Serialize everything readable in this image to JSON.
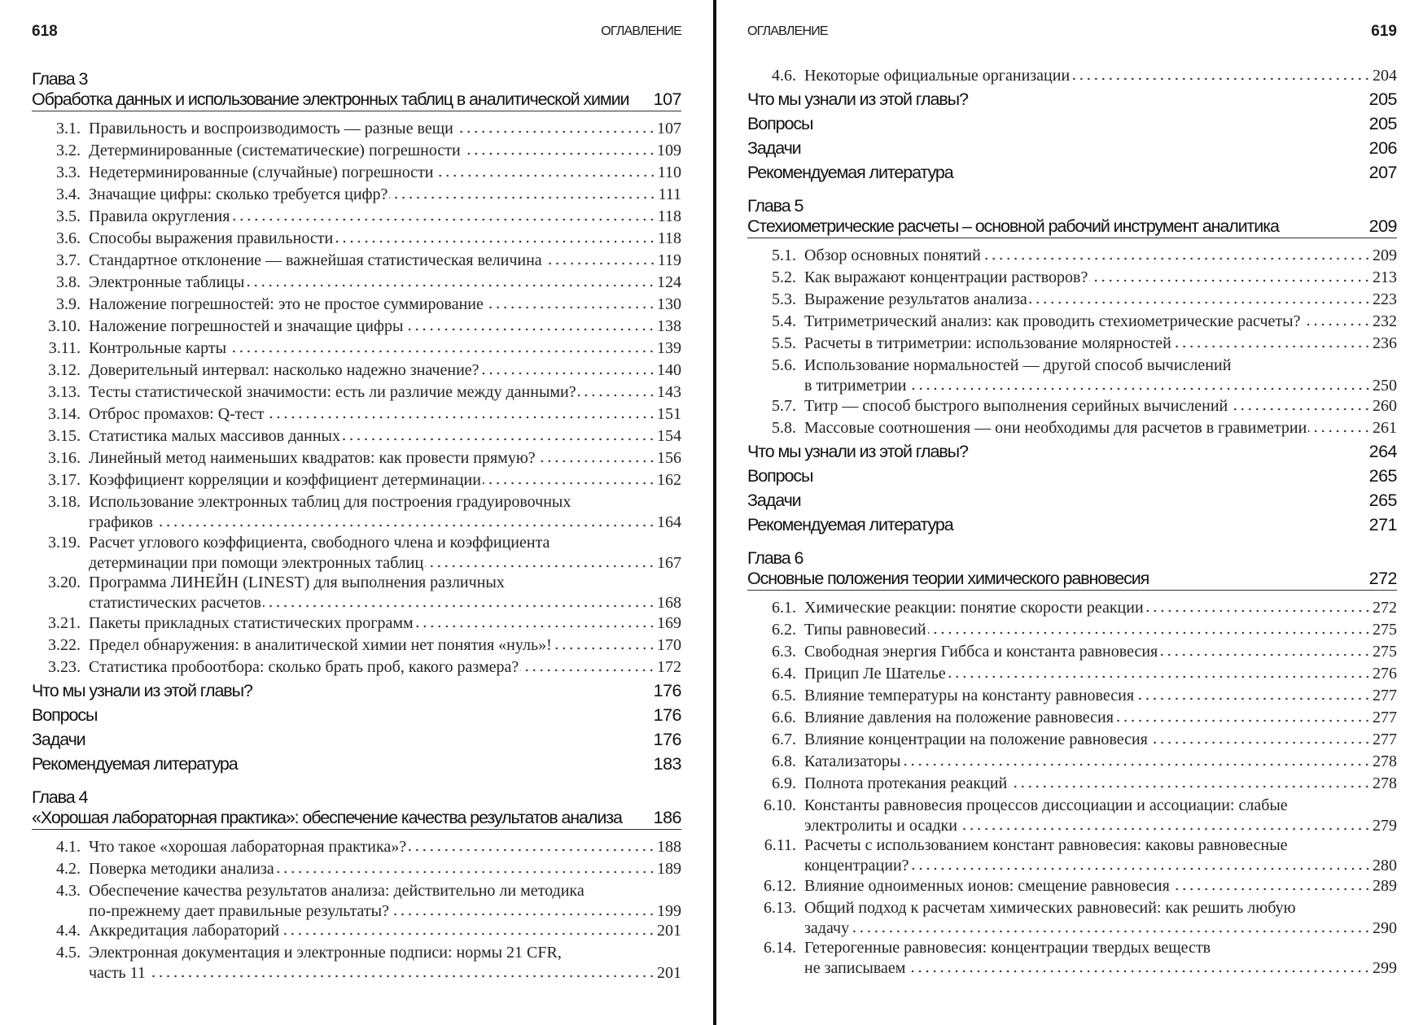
{
  "pages": [
    {
      "folio": "618",
      "running_head": "ОГЛАВЛЕНИЕ",
      "blocks": [
        {
          "type": "chapter",
          "label": "Глава 3",
          "title": "Обработка данных и использование электронных таблиц в аналитической химии",
          "page": "107"
        },
        {
          "type": "entry",
          "num": "3.1.",
          "lines": [
            "Правильность и воспроизводимость — разные вещи"
          ],
          "page": "107"
        },
        {
          "type": "entry",
          "num": "3.2.",
          "lines": [
            "Детерминированные (систематические) погрешности"
          ],
          "page": "109"
        },
        {
          "type": "entry",
          "num": "3.3.",
          "lines": [
            "Недетерминированные (случайные) погрешности"
          ],
          "page": "110"
        },
        {
          "type": "entry",
          "num": "3.4.",
          "lines": [
            "Значащие цифры: сколько требуется цифр?"
          ],
          "page": "111"
        },
        {
          "type": "entry",
          "num": "3.5.",
          "lines": [
            "Правила округления"
          ],
          "page": "118"
        },
        {
          "type": "entry",
          "num": "3.6.",
          "lines": [
            "Способы выражения правильности"
          ],
          "page": "118"
        },
        {
          "type": "entry",
          "num": "3.7.",
          "lines": [
            "Стандартное отклонение — важнейшая статистическая величина"
          ],
          "page": "119"
        },
        {
          "type": "entry",
          "num": "3.8.",
          "lines": [
            "Электронные таблицы"
          ],
          "page": "124"
        },
        {
          "type": "entry",
          "num": "3.9.",
          "lines": [
            "Наложение погрешностей: это не простое суммирование"
          ],
          "page": "130"
        },
        {
          "type": "entry",
          "num": "3.10.",
          "lines": [
            "Наложение погрешностей и значащие цифры"
          ],
          "page": "138"
        },
        {
          "type": "entry",
          "num": "3.11.",
          "lines": [
            "Контрольные карты"
          ],
          "page": "139"
        },
        {
          "type": "entry",
          "num": "3.12.",
          "lines": [
            "Доверительный интервал: насколько надежно значение?"
          ],
          "page": "140"
        },
        {
          "type": "entry",
          "num": "3.13.",
          "lines": [
            "Тесты статистической значимости: есть ли различие между данными?"
          ],
          "page": "143"
        },
        {
          "type": "entry",
          "num": "3.14.",
          "lines": [
            "Отброс промахов: Q-тест"
          ],
          "page": "151"
        },
        {
          "type": "entry",
          "num": "3.15.",
          "lines": [
            "Статистика малых массивов данных"
          ],
          "page": "154"
        },
        {
          "type": "entry",
          "num": "3.16.",
          "lines": [
            "Линейный метод наименьших квадратов: как провести прямую?"
          ],
          "page": "156"
        },
        {
          "type": "entry",
          "num": "3.17.",
          "lines": [
            "Коэффициент корреляции и коэффициент детерминации"
          ],
          "page": "162"
        },
        {
          "type": "entry",
          "num": "3.18.",
          "lines": [
            "Использование электронных таблиц для построения градуировочных",
            "графиков"
          ],
          "page": "164"
        },
        {
          "type": "entry",
          "num": "3.19.",
          "lines": [
            "Расчет углового коэффициента, свободного члена и коэффициента",
            "детерминации при помощи электронных таблиц"
          ],
          "page": "167"
        },
        {
          "type": "entry",
          "num": "3.20.",
          "lines": [
            "Программа ЛИНЕЙН (LINEST) для выполнения различных",
            "статистических расчетов"
          ],
          "page": "168"
        },
        {
          "type": "entry",
          "num": "3.21.",
          "lines": [
            "Пакеты прикладных статистических программ"
          ],
          "page": "169"
        },
        {
          "type": "entry",
          "num": "3.22.",
          "lines": [
            "Предел обнаружения: в аналитической химии нет понятия «нуль»!"
          ],
          "page": "170"
        },
        {
          "type": "entry",
          "num": "3.23.",
          "lines": [
            "Статистика пробоотбора: сколько брать проб, какого размера?"
          ],
          "page": "172"
        },
        {
          "type": "section",
          "title": "Что мы узнали из этой главы?",
          "page": "176"
        },
        {
          "type": "section",
          "title": "Вопросы",
          "page": "176"
        },
        {
          "type": "section",
          "title": "Задачи",
          "page": "176"
        },
        {
          "type": "section",
          "title": "Рекомендуемая литература",
          "page": "183"
        },
        {
          "type": "chapter",
          "label": "Глава 4",
          "title": "«Хорошая лабораторная практика»: обеспечение качества результатов анализа",
          "page": "186"
        },
        {
          "type": "entry",
          "num": "4.1.",
          "lines": [
            "Что такое «хорошая лабораторная практика»?"
          ],
          "page": "188"
        },
        {
          "type": "entry",
          "num": "4.2.",
          "lines": [
            "Поверка методики анализа"
          ],
          "page": "189"
        },
        {
          "type": "entry",
          "num": "4.3.",
          "lines": [
            "Обеспечение качества результатов анализа: действительно ли методика",
            "по-прежнему дает правильные результаты?"
          ],
          "page": "199"
        },
        {
          "type": "entry",
          "num": "4.4.",
          "lines": [
            "Аккредитация лабораторий"
          ],
          "page": "201"
        },
        {
          "type": "entry",
          "num": "4.5.",
          "lines": [
            "Электронная документация и электронные подписи: нормы 21 CFR,",
            "часть 11"
          ],
          "page": "201"
        }
      ]
    },
    {
      "folio": "619",
      "running_head": "ОГЛАВЛЕНИЕ",
      "blocks": [
        {
          "type": "entry",
          "num": "4.6.",
          "lines": [
            "Некоторые официальные организации"
          ],
          "page": "204"
        },
        {
          "type": "section",
          "title": "Что мы узнали из этой главы?",
          "page": "205"
        },
        {
          "type": "section",
          "title": "Вопросы",
          "page": "205"
        },
        {
          "type": "section",
          "title": "Задачи",
          "page": "206"
        },
        {
          "type": "section",
          "title": "Рекомендуемая литература",
          "page": "207"
        },
        {
          "type": "chapter",
          "label": "Глава 5",
          "title": "Стехиометрические расчеты – основной рабочий инструмент аналитика",
          "page": "209"
        },
        {
          "type": "entry",
          "num": "5.1.",
          "lines": [
            "Обзор основных понятий"
          ],
          "page": "209"
        },
        {
          "type": "entry",
          "num": "5.2.",
          "lines": [
            "Как выражают концентрации растворов?"
          ],
          "page": "213"
        },
        {
          "type": "entry",
          "num": "5.3.",
          "lines": [
            "Выражение результатов анализа"
          ],
          "page": "223"
        },
        {
          "type": "entry",
          "num": "5.4.",
          "lines": [
            "Титриметрический анализ: как проводить стехиометрические расчеты?"
          ],
          "page": "232"
        },
        {
          "type": "entry",
          "num": "5.5.",
          "lines": [
            "Расчеты в титриметрии: использование молярностей"
          ],
          "page": "236"
        },
        {
          "type": "entry",
          "num": "5.6.",
          "lines": [
            "Использование нормальностей — другой способ вычислений",
            "в титриметрии"
          ],
          "page": "250"
        },
        {
          "type": "entry",
          "num": "5.7.",
          "lines": [
            "Титр — способ быстрого выполнения серийных вычислений"
          ],
          "page": "260"
        },
        {
          "type": "entry",
          "num": "5.8.",
          "lines": [
            "Массовые соотношения — они необходимы для расчетов в гравиметрии"
          ],
          "page": "261"
        },
        {
          "type": "section",
          "title": "Что мы узнали из этой главы?",
          "page": "264"
        },
        {
          "type": "section",
          "title": "Вопросы",
          "page": "265"
        },
        {
          "type": "section",
          "title": "Задачи",
          "page": "265"
        },
        {
          "type": "section",
          "title": "Рекомендуемая литература",
          "page": "271"
        },
        {
          "type": "chapter",
          "label": "Глава 6",
          "title": "Основные  положения теории химического равновесия",
          "page": "272"
        },
        {
          "type": "entry",
          "num": "6.1.",
          "lines": [
            "Химические реакции: понятие скорости  реакции"
          ],
          "page": "272"
        },
        {
          "type": "entry",
          "num": "6.2.",
          "lines": [
            "Типы равновесий"
          ],
          "page": "275"
        },
        {
          "type": "entry",
          "num": "6.3.",
          "lines": [
            "Свободная энергия Гиббса и константа равновесия"
          ],
          "page": "275"
        },
        {
          "type": "entry",
          "num": "6.4.",
          "lines": [
            "Прицип  Ле Шателье"
          ],
          "page": "276"
        },
        {
          "type": "entry",
          "num": "6.5.",
          "lines": [
            "Влияние температуры на константу равновесия"
          ],
          "page": "277"
        },
        {
          "type": "entry",
          "num": "6.6.",
          "lines": [
            "Влияние давления на положение равновесия"
          ],
          "page": "277"
        },
        {
          "type": "entry",
          "num": "6.7.",
          "lines": [
            "Влияние концентрации на положение равновесия"
          ],
          "page": "277"
        },
        {
          "type": "entry",
          "num": "6.8.",
          "lines": [
            "Катализаторы"
          ],
          "page": "278"
        },
        {
          "type": "entry",
          "num": "6.9.",
          "lines": [
            "Полнота протекания реакций"
          ],
          "page": "278"
        },
        {
          "type": "entry",
          "num": "6.10.",
          "lines": [
            "Константы равновесия процессов диссоциации и ассоциации: слабые",
            "электролиты и осадки"
          ],
          "page": "279"
        },
        {
          "type": "entry",
          "num": "6.11.",
          "lines": [
            "Расчеты с использованием констант равновесия: каковы равновесные",
            "концентрации?"
          ],
          "page": "280"
        },
        {
          "type": "entry",
          "num": "6.12.",
          "lines": [
            "Влияние одноименных ионов: смещение равновесия"
          ],
          "page": "289"
        },
        {
          "type": "entry",
          "num": "6.13.",
          "lines": [
            "Общий подход к расчетам химических равновесий: как решить любую",
            "задачу"
          ],
          "page": "290"
        },
        {
          "type": "entry",
          "num": "6.14.",
          "lines": [
            "Гетерогенные равновесия: концентрации твердых веществ",
            "не записываем"
          ],
          "page": "299"
        }
      ]
    }
  ]
}
